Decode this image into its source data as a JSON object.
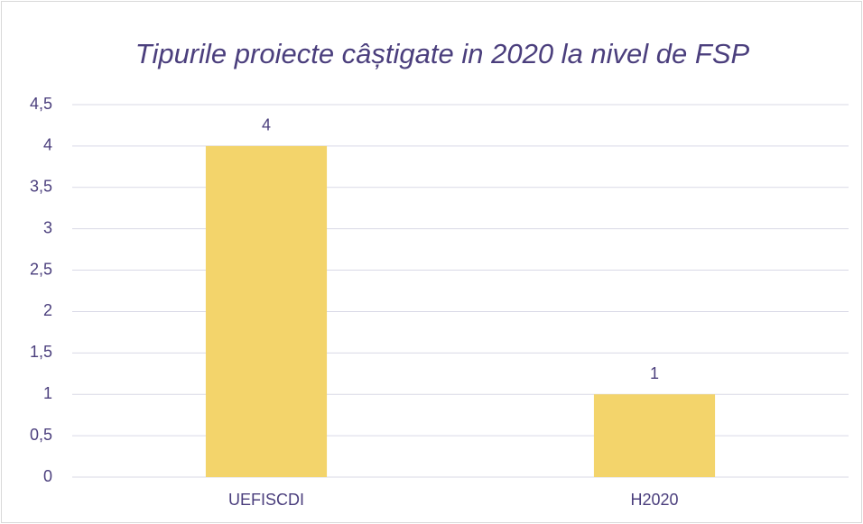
{
  "chart_data": {
    "type": "bar",
    "title": "Tipurile proiecte câștigate in 2020 la nivel de FSP",
    "categories": [
      "UEFISCDI",
      "H2020"
    ],
    "values": [
      4,
      1
    ],
    "color": "#f3d46b",
    "ylim": [
      0,
      4.5
    ],
    "yticks": [
      0,
      {
        "value": 0.5,
        "label": "0,5"
      },
      1,
      {
        "value": 1.5,
        "label": "1,5"
      },
      2,
      {
        "value": 2.5,
        "label": "2,5"
      },
      3,
      {
        "value": 3.5,
        "label": "3,5"
      },
      4,
      {
        "value": 4.5,
        "label": "4,5"
      }
    ],
    "grid": true
  }
}
